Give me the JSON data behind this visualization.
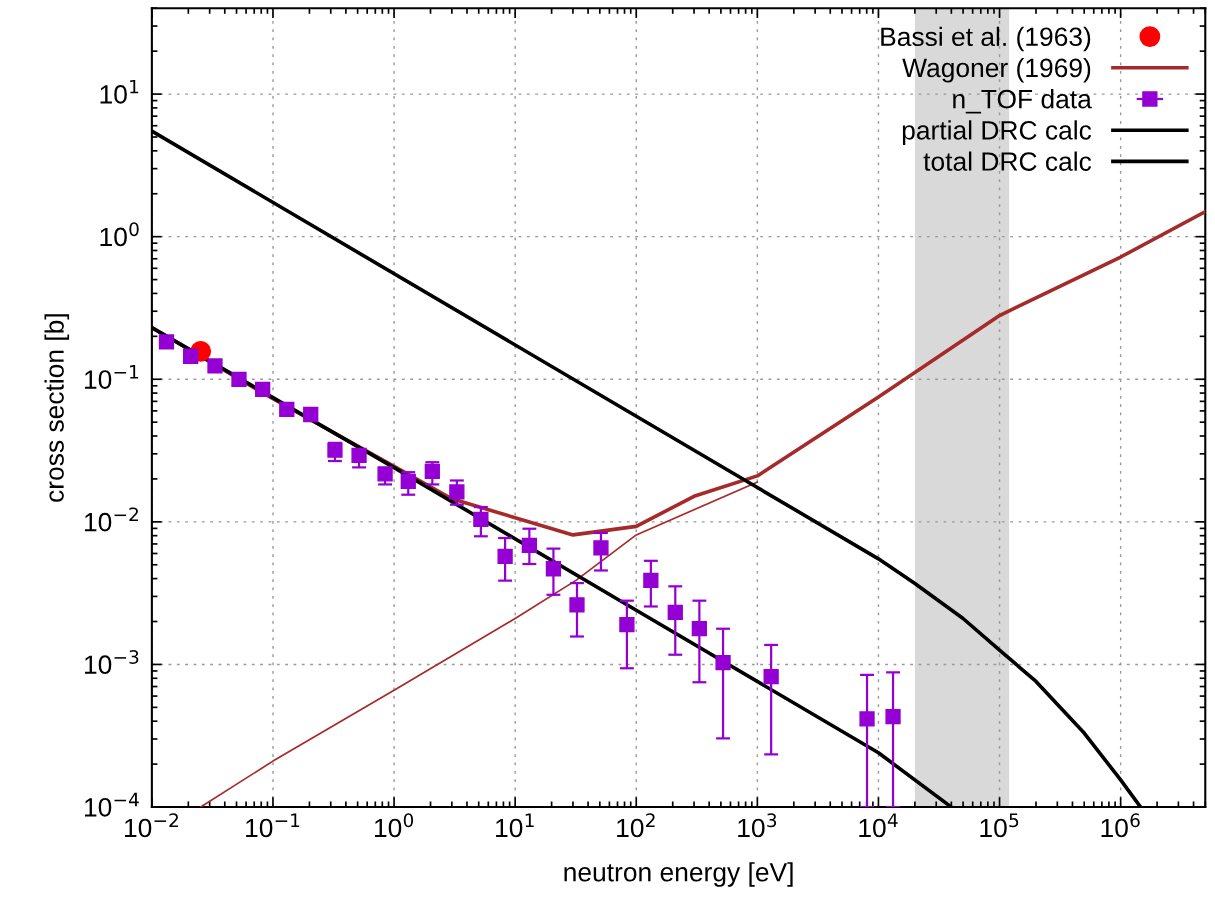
{
  "chart_data": {
    "type": "line",
    "xlabel": "neutron energy [eV]",
    "ylabel": "cross section [b]",
    "log": "xy",
    "grid": true,
    "legend": "top right",
    "xlim": [
      0.01,
      5000000
    ],
    "ylim": [
      0.0001,
      40
    ],
    "xticks": [
      {
        "value": 0.01,
        "label": "10$^{−2}$"
      },
      {
        "value": 0.1,
        "label": "10$^{−1}$"
      },
      {
        "value": 1,
        "label": "10$^{0}$"
      },
      {
        "value": 10,
        "label": "10$^{1}$"
      },
      {
        "value": 100,
        "label": "10$^{2}$"
      },
      {
        "value": 1000,
        "label": "10$^{3}$"
      },
      {
        "value": 10000,
        "label": "10$^{4}$"
      },
      {
        "value": 100000,
        "label": "10$^{5}$"
      },
      {
        "value": 1000000,
        "label": "10$^{6}$"
      }
    ],
    "yticks": [
      {
        "value": 0.0001,
        "label": "10$^{−4}$"
      },
      {
        "value": 0.001,
        "label": "10$^{−3}$"
      },
      {
        "value": 0.01,
        "label": "10$^{−2}$"
      },
      {
        "value": 0.1,
        "label": "10$^{−1}$"
      },
      {
        "value": 1,
        "label": "10$^{0}$"
      },
      {
        "value": 10,
        "label": "10$^{1}$"
      }
    ],
    "bands": [
      {
        "axis": "x",
        "from": 20000,
        "to": 120000,
        "color": "#d9d9d9"
      }
    ],
    "series": [
      {
        "name": "Bassi et al. (1963)",
        "type": "scatter",
        "marker": "circle",
        "color": "#ff0000",
        "x": [
          0.0253
        ],
        "values": [
          0.157
        ]
      },
      {
        "name": "Wagoner (1969)",
        "color": "#a52a2a",
        "x": [
          0.01,
          0.1,
          1,
          3,
          10,
          30,
          100,
          300,
          1000,
          10000,
          100000,
          1000000,
          5000000
        ],
        "values": [
          0.23,
          0.073,
          0.0245,
          0.0145,
          0.0107,
          0.0081,
          0.0093,
          0.0151,
          0.021,
          0.075,
          0.28,
          0.72,
          1.5
        ]
      },
      {
        "color": "#a52a2a",
        "x": [
          0.0253,
          0.1,
          1,
          10,
          32,
          100,
          1000
        ],
        "values": [
          0.0001,
          0.00021,
          0.00066,
          0.0021,
          0.0039,
          0.0081,
          0.019
        ]
      },
      {
        "name": "n_TOF data",
        "type": "scatter",
        "marker": "square",
        "color": "#9400d3",
        "x": [
          0.0132,
          0.0209,
          0.0332,
          0.0524,
          0.0822,
          0.13,
          0.205,
          0.325,
          0.514,
          0.843,
          1.31,
          2.07,
          3.3,
          5.21,
          8.26,
          13.1,
          20.7,
          32.4,
          51.1,
          83.7,
          132,
          210,
          332,
          521,
          1300,
          8050,
          13200
        ],
        "values": [
          0.183,
          0.145,
          0.124,
          0.0998,
          0.0848,
          0.0614,
          0.0566,
          0.0318,
          0.0293,
          0.0217,
          0.0192,
          0.0226,
          0.0162,
          0.0104,
          0.00573,
          0.00685,
          0.00469,
          0.00262,
          0.00657,
          0.0019,
          0.00388,
          0.00232,
          0.00178,
          0.00103,
          0.00082,
          0.000415,
          0.00043
        ],
        "errors": [
          null,
          null,
          null,
          null,
          null,
          null,
          null,
          [
            0.0267,
            0.0358
          ],
          [
            0.0241,
            0.0293
          ],
          [
            0.0183,
            0.0217
          ],
          [
            0.0155,
            0.0223
          ],
          [
            0.0183,
            0.0262
          ],
          [
            0.0132,
            0.0195
          ],
          [
            0.00792,
            0.0127
          ],
          [
            0.00387,
            0.0077
          ],
          [
            0.00506,
            0.00895
          ],
          [
            0.00308,
            0.00649
          ],
          [
            0.00157,
            0.00372
          ],
          [
            0.00456,
            0.00836
          ],
          [
            0.00094,
            0.0028
          ],
          [
            0.00255,
            0.00533
          ],
          [
            0.00117,
            0.00353
          ],
          [
            0.00075,
            0.0028
          ],
          [
            0.000303,
            0.00178
          ],
          [
            0.000234,
            0.00137
          ],
          [
            0.0001,
            0.000845
          ],
          [
            0.0001,
            0.00088
          ]
        ]
      },
      {
        "name": "partial DRC calc",
        "color": "#000000",
        "x": [
          0.01,
          1,
          100,
          10000,
          40000
        ],
        "values": [
          0.23,
          0.024,
          0.0024,
          0.00024,
          0.0001
        ]
      },
      {
        "name": "total DRC calc",
        "color": "#000000",
        "x": [
          0.01,
          1000,
          10000,
          20000,
          50000,
          100000,
          200000,
          500000,
          1000000,
          1460000
        ],
        "values": [
          5.5,
          0.0174,
          0.0055,
          0.0037,
          0.0021,
          0.00126,
          0.00076,
          0.00033,
          0.000155,
          0.0001
        ]
      }
    ]
  }
}
